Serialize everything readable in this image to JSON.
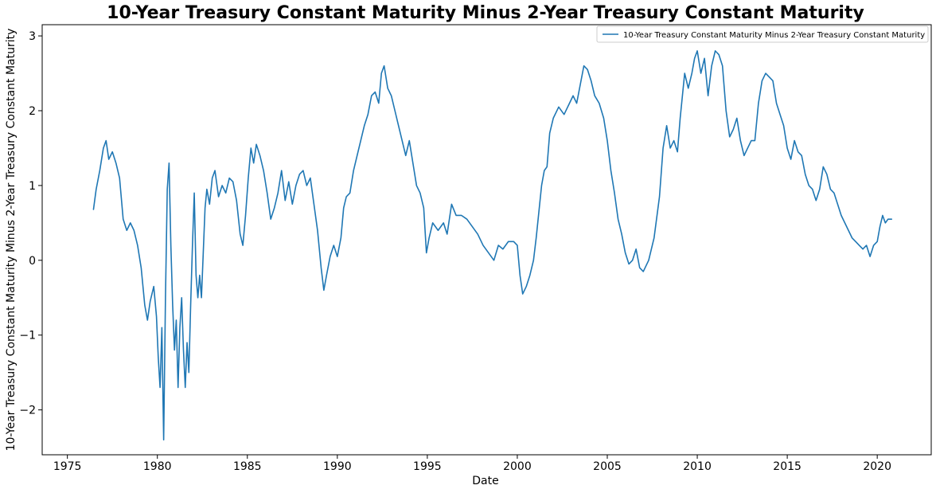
{
  "chart_data": {
    "type": "line",
    "title": "10-Year Treasury Constant Maturity Minus 2-Year Treasury Constant Maturity",
    "xlabel": "Date",
    "ylabel": "10-Year Treasury Constant Maturity Minus 2-Year Treasury Constant Maturity",
    "xlim": [
      1973.6,
      2023.0
    ],
    "ylim": [
      -2.6,
      3.15
    ],
    "x_ticks": [
      1975,
      1980,
      1985,
      1990,
      1995,
      2000,
      2005,
      2010,
      2015,
      2020
    ],
    "y_ticks": [
      -2,
      -1,
      0,
      1,
      2,
      3
    ],
    "y_tick_labels": [
      "−2",
      "−1",
      "0",
      "1",
      "2",
      "3"
    ],
    "grid": false,
    "legend_position": "top-right",
    "series": [
      {
        "name": "10-Year Treasury Constant Maturity Minus 2-Year Treasury Constant Maturity",
        "color": "#1f77b4",
        "points": [
          [
            1976.45,
            0.68
          ],
          [
            1976.6,
            0.95
          ],
          [
            1976.8,
            1.2
          ],
          [
            1977.0,
            1.5
          ],
          [
            1977.15,
            1.6
          ],
          [
            1977.3,
            1.35
          ],
          [
            1977.5,
            1.45
          ],
          [
            1977.7,
            1.3
          ],
          [
            1977.9,
            1.1
          ],
          [
            1978.1,
            0.55
          ],
          [
            1978.3,
            0.4
          ],
          [
            1978.5,
            0.5
          ],
          [
            1978.7,
            0.4
          ],
          [
            1978.9,
            0.2
          ],
          [
            1979.1,
            -0.1
          ],
          [
            1979.3,
            -0.6
          ],
          [
            1979.45,
            -0.8
          ],
          [
            1979.6,
            -0.55
          ],
          [
            1979.8,
            -0.35
          ],
          [
            1979.95,
            -0.75
          ],
          [
            1980.05,
            -1.3
          ],
          [
            1980.15,
            -1.7
          ],
          [
            1980.25,
            -0.9
          ],
          [
            1980.35,
            -2.4
          ],
          [
            1980.45,
            -0.5
          ],
          [
            1980.55,
            0.95
          ],
          [
            1980.65,
            1.3
          ],
          [
            1980.75,
            0.2
          ],
          [
            1980.85,
            -0.6
          ],
          [
            1980.95,
            -1.2
          ],
          [
            1981.05,
            -0.8
          ],
          [
            1981.15,
            -1.7
          ],
          [
            1981.25,
            -0.9
          ],
          [
            1981.35,
            -0.5
          ],
          [
            1981.45,
            -1.2
          ],
          [
            1981.55,
            -1.7
          ],
          [
            1981.65,
            -1.1
          ],
          [
            1981.75,
            -1.5
          ],
          [
            1981.85,
            -0.6
          ],
          [
            1981.95,
            0.2
          ],
          [
            1982.05,
            0.9
          ],
          [
            1982.15,
            -0.2
          ],
          [
            1982.25,
            -0.5
          ],
          [
            1982.35,
            -0.2
          ],
          [
            1982.45,
            -0.5
          ],
          [
            1982.55,
            0.1
          ],
          [
            1982.65,
            0.7
          ],
          [
            1982.75,
            0.95
          ],
          [
            1982.9,
            0.75
          ],
          [
            1983.05,
            1.1
          ],
          [
            1983.2,
            1.2
          ],
          [
            1983.4,
            0.85
          ],
          [
            1983.6,
            1.0
          ],
          [
            1983.8,
            0.9
          ],
          [
            1984.0,
            1.1
          ],
          [
            1984.2,
            1.05
          ],
          [
            1984.4,
            0.8
          ],
          [
            1984.6,
            0.35
          ],
          [
            1984.75,
            0.2
          ],
          [
            1984.9,
            0.6
          ],
          [
            1985.05,
            1.1
          ],
          [
            1985.2,
            1.5
          ],
          [
            1985.35,
            1.3
          ],
          [
            1985.5,
            1.55
          ],
          [
            1985.7,
            1.4
          ],
          [
            1985.9,
            1.2
          ],
          [
            1986.1,
            0.9
          ],
          [
            1986.3,
            0.55
          ],
          [
            1986.5,
            0.7
          ],
          [
            1986.7,
            0.9
          ],
          [
            1986.9,
            1.2
          ],
          [
            1987.1,
            0.8
          ],
          [
            1987.3,
            1.05
          ],
          [
            1987.5,
            0.75
          ],
          [
            1987.7,
            1.0
          ],
          [
            1987.9,
            1.15
          ],
          [
            1988.1,
            1.2
          ],
          [
            1988.3,
            1.0
          ],
          [
            1988.5,
            1.1
          ],
          [
            1988.7,
            0.75
          ],
          [
            1988.9,
            0.4
          ],
          [
            1989.1,
            -0.1
          ],
          [
            1989.25,
            -0.4
          ],
          [
            1989.4,
            -0.2
          ],
          [
            1989.6,
            0.05
          ],
          [
            1989.8,
            0.2
          ],
          [
            1990.0,
            0.05
          ],
          [
            1990.2,
            0.3
          ],
          [
            1990.35,
            0.7
          ],
          [
            1990.5,
            0.85
          ],
          [
            1990.7,
            0.9
          ],
          [
            1990.9,
            1.2
          ],
          [
            1991.1,
            1.4
          ],
          [
            1991.3,
            1.6
          ],
          [
            1991.5,
            1.8
          ],
          [
            1991.7,
            1.95
          ],
          [
            1991.9,
            2.2
          ],
          [
            1992.1,
            2.25
          ],
          [
            1992.3,
            2.1
          ],
          [
            1992.45,
            2.5
          ],
          [
            1992.6,
            2.6
          ],
          [
            1992.8,
            2.3
          ],
          [
            1993.0,
            2.2
          ],
          [
            1993.2,
            2.0
          ],
          [
            1993.4,
            1.8
          ],
          [
            1993.6,
            1.6
          ],
          [
            1993.8,
            1.4
          ],
          [
            1994.0,
            1.6
          ],
          [
            1994.2,
            1.3
          ],
          [
            1994.4,
            1.0
          ],
          [
            1994.6,
            0.9
          ],
          [
            1994.8,
            0.7
          ],
          [
            1994.95,
            0.1
          ],
          [
            1995.1,
            0.3
          ],
          [
            1995.3,
            0.5
          ],
          [
            1995.6,
            0.4
          ],
          [
            1995.9,
            0.5
          ],
          [
            1996.1,
            0.35
          ],
          [
            1996.35,
            0.75
          ],
          [
            1996.6,
            0.6
          ],
          [
            1996.9,
            0.6
          ],
          [
            1997.2,
            0.55
          ],
          [
            1997.5,
            0.45
          ],
          [
            1997.8,
            0.35
          ],
          [
            1998.1,
            0.2
          ],
          [
            1998.4,
            0.1
          ],
          [
            1998.7,
            0.0
          ],
          [
            1998.95,
            0.2
          ],
          [
            1999.2,
            0.15
          ],
          [
            1999.5,
            0.25
          ],
          [
            1999.8,
            0.25
          ],
          [
            2000.0,
            0.2
          ],
          [
            2000.15,
            -0.2
          ],
          [
            2000.3,
            -0.45
          ],
          [
            2000.5,
            -0.35
          ],
          [
            2000.7,
            -0.2
          ],
          [
            2000.9,
            0.0
          ],
          [
            2001.05,
            0.3
          ],
          [
            2001.2,
            0.65
          ],
          [
            2001.35,
            1.0
          ],
          [
            2001.5,
            1.2
          ],
          [
            2001.65,
            1.25
          ],
          [
            2001.8,
            1.7
          ],
          [
            2002.0,
            1.9
          ],
          [
            2002.3,
            2.05
          ],
          [
            2002.6,
            1.95
          ],
          [
            2002.9,
            2.1
          ],
          [
            2003.1,
            2.2
          ],
          [
            2003.3,
            2.1
          ],
          [
            2003.5,
            2.35
          ],
          [
            2003.7,
            2.6
          ],
          [
            2003.9,
            2.55
          ],
          [
            2004.1,
            2.4
          ],
          [
            2004.3,
            2.2
          ],
          [
            2004.55,
            2.1
          ],
          [
            2004.8,
            1.9
          ],
          [
            2005.0,
            1.6
          ],
          [
            2005.2,
            1.2
          ],
          [
            2005.4,
            0.9
          ],
          [
            2005.6,
            0.55
          ],
          [
            2005.8,
            0.35
          ],
          [
            2006.0,
            0.1
          ],
          [
            2006.2,
            -0.05
          ],
          [
            2006.4,
            0.0
          ],
          [
            2006.6,
            0.15
          ],
          [
            2006.8,
            -0.1
          ],
          [
            2007.0,
            -0.15
          ],
          [
            2007.3,
            0.0
          ],
          [
            2007.6,
            0.3
          ],
          [
            2007.9,
            0.85
          ],
          [
            2008.1,
            1.5
          ],
          [
            2008.3,
            1.8
          ],
          [
            2008.5,
            1.5
          ],
          [
            2008.7,
            1.6
          ],
          [
            2008.9,
            1.45
          ],
          [
            2009.05,
            1.9
          ],
          [
            2009.3,
            2.5
          ],
          [
            2009.5,
            2.3
          ],
          [
            2009.7,
            2.5
          ],
          [
            2009.85,
            2.7
          ],
          [
            2010.0,
            2.8
          ],
          [
            2010.2,
            2.5
          ],
          [
            2010.4,
            2.7
          ],
          [
            2010.6,
            2.2
          ],
          [
            2010.8,
            2.6
          ],
          [
            2011.0,
            2.8
          ],
          [
            2011.2,
            2.75
          ],
          [
            2011.4,
            2.6
          ],
          [
            2011.6,
            2.0
          ],
          [
            2011.8,
            1.65
          ],
          [
            2012.0,
            1.75
          ],
          [
            2012.2,
            1.9
          ],
          [
            2012.4,
            1.6
          ],
          [
            2012.6,
            1.4
          ],
          [
            2012.8,
            1.5
          ],
          [
            2013.0,
            1.6
          ],
          [
            2013.2,
            1.6
          ],
          [
            2013.4,
            2.1
          ],
          [
            2013.6,
            2.4
          ],
          [
            2013.8,
            2.5
          ],
          [
            2014.0,
            2.45
          ],
          [
            2014.2,
            2.4
          ],
          [
            2014.4,
            2.1
          ],
          [
            2014.6,
            1.95
          ],
          [
            2014.8,
            1.8
          ],
          [
            2015.0,
            1.5
          ],
          [
            2015.2,
            1.35
          ],
          [
            2015.4,
            1.6
          ],
          [
            2015.6,
            1.45
          ],
          [
            2015.8,
            1.4
          ],
          [
            2016.0,
            1.15
          ],
          [
            2016.2,
            1.0
          ],
          [
            2016.4,
            0.95
          ],
          [
            2016.6,
            0.8
          ],
          [
            2016.8,
            0.95
          ],
          [
            2017.0,
            1.25
          ],
          [
            2017.2,
            1.15
          ],
          [
            2017.4,
            0.95
          ],
          [
            2017.6,
            0.9
          ],
          [
            2017.8,
            0.75
          ],
          [
            2018.0,
            0.6
          ],
          [
            2018.2,
            0.5
          ],
          [
            2018.4,
            0.4
          ],
          [
            2018.6,
            0.3
          ],
          [
            2018.8,
            0.25
          ],
          [
            2019.0,
            0.2
          ],
          [
            2019.2,
            0.15
          ],
          [
            2019.4,
            0.2
          ],
          [
            2019.6,
            0.05
          ],
          [
            2019.8,
            0.2
          ],
          [
            2020.0,
            0.25
          ],
          [
            2020.15,
            0.45
          ],
          [
            2020.3,
            0.6
          ],
          [
            2020.45,
            0.5
          ],
          [
            2020.6,
            0.55
          ],
          [
            2020.8,
            0.55
          ]
        ]
      }
    ]
  }
}
